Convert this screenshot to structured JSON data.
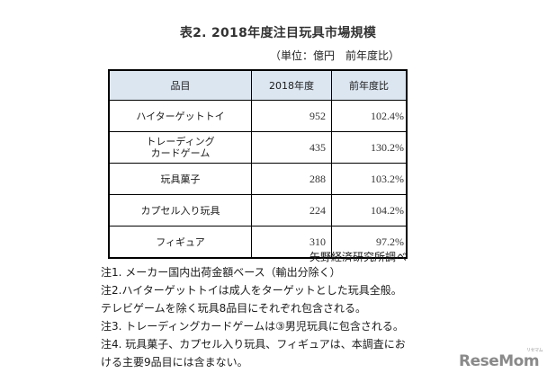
{
  "title": "表2. 2018年度注目玩具市場規模",
  "unit_note": "（単位：億円　前年度比）",
  "table": {
    "headers": [
      "品目",
      "2018年度",
      "前年度比"
    ],
    "header_bg": "#dce6f1",
    "rows": [
      {
        "item": "ハイターゲットトイ",
        "value": "952",
        "ratio": "102.4%"
      },
      {
        "item": "トレーディング\nカードゲーム",
        "value": "435",
        "ratio": "130.2%"
      },
      {
        "item": "玩具菓子",
        "value": "288",
        "ratio": "103.2%"
      },
      {
        "item": "カプセル入り玩具",
        "value": "224",
        "ratio": "104.2%"
      },
      {
        "item": "フィギュア",
        "value": "310",
        "ratio": "97.2%"
      }
    ]
  },
  "source": "矢野経済研究所調べ",
  "notes": [
    "注1. メーカー国内出荷金額ベース（輸出分除く）",
    "注2.ハイターゲットトイは成人をターゲットとした玩具全般。テレビゲームを除く玩具8品目にそれぞれ包含される。",
    "注3. トレーディングカードゲームは③男児玩具に包含される。",
    "注4. 玩具菓子、カプセル入り玩具、フィギュアは、本調査における主要9品目には含まない。"
  ],
  "logo": {
    "text": "ReseMom",
    "kana": "リセマム"
  }
}
